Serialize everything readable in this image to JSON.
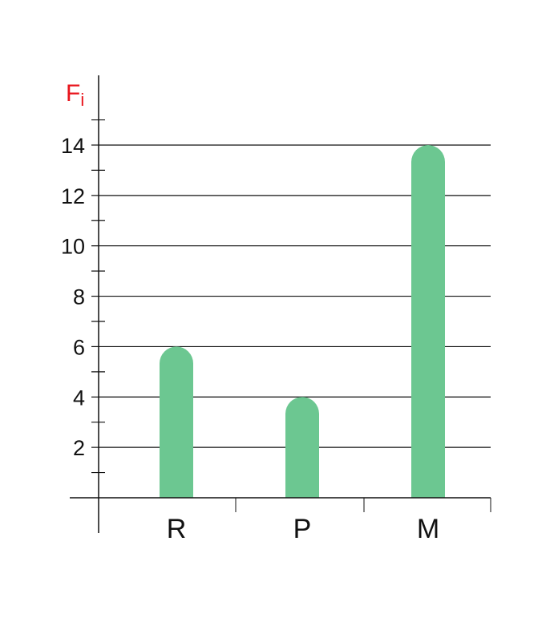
{
  "chart_data": {
    "type": "bar",
    "title": "",
    "xlabel": "",
    "ylabel": "Fi",
    "ylabel_main": "F",
    "ylabel_sub": "i",
    "categories": [
      "R",
      "P",
      "M"
    ],
    "values": [
      6,
      4,
      14
    ],
    "ylim": [
      0,
      14
    ],
    "yticks": [
      2,
      4,
      6,
      8,
      10,
      12,
      14
    ],
    "minor_ticks": [
      1,
      3,
      5,
      7,
      9,
      11,
      13,
      15
    ],
    "grid": true,
    "legend": "none"
  },
  "colors": {
    "bar": "#6cc791",
    "ylabel": "#e8141c",
    "axis": "#111111",
    "grid": "#111111"
  }
}
